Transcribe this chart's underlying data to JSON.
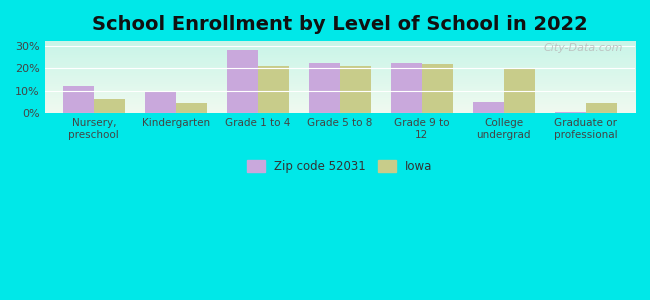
{
  "title": "School Enrollment by Level of School in 2022",
  "categories": [
    "Nursery,\npreschool",
    "Kindergarten",
    "Grade 1 to 4",
    "Grade 5 to 8",
    "Grade 9 to\n12",
    "College\nundergrad",
    "Graduate or\nprofessional"
  ],
  "zip_values": [
    12.3,
    9.5,
    28.0,
    22.5,
    22.5,
    5.0,
    0.5
  ],
  "iowa_values": [
    6.2,
    4.5,
    21.0,
    21.0,
    22.0,
    20.2,
    4.5
  ],
  "zip_color": "#c9a8dc",
  "iowa_color": "#c8cc8a",
  "background_color": "#00e8e8",
  "plot_bg_top": "#f0faf0",
  "plot_bg_bottom": "#c8f5e8",
  "ylim": [
    0,
    32
  ],
  "yticks": [
    0,
    10,
    20,
    30
  ],
  "ytick_labels": [
    "0%",
    "10%",
    "20%",
    "30%"
  ],
  "zip_label": "Zip code 52031",
  "iowa_label": "Iowa",
  "title_fontsize": 14,
  "bar_width": 0.38,
  "watermark": "City-Data.com"
}
